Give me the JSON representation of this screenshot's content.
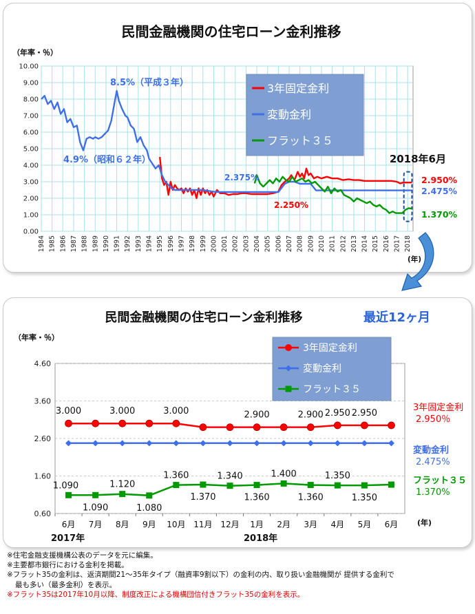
{
  "top": {
    "title": "民間金融機関の住宅ローン金利推移",
    "unit": "（年率・％）",
    "year_unit": "(年)",
    "highlight_label": "2018年6月",
    "chart_data": {
      "type": "line",
      "xlim": [
        1984,
        2018.5
      ],
      "ylim": [
        0,
        10
      ],
      "y_ticks": [
        "0.00",
        "1.00",
        "2.00",
        "3.00",
        "4.00",
        "5.00",
        "6.00",
        "7.00",
        "8.00",
        "9.00",
        "10.00"
      ],
      "x_ticks": [
        "1984",
        "1985",
        "1986",
        "1987",
        "1988",
        "1989",
        "1990",
        "1991",
        "1992",
        "1993",
        "1994",
        "1995",
        "1996",
        "1997",
        "1998",
        "1999",
        "2000",
        "2001",
        "2002",
        "2003",
        "2004",
        "2005",
        "2006",
        "2007",
        "2008",
        "2009",
        "2010",
        "2011",
        "2012",
        "2013",
        "2014",
        "2015",
        "2016",
        "2017",
        "2018"
      ],
      "legend": [
        "3年固定金利",
        "変動金利",
        "フラット３５"
      ],
      "legend_position": "top-right",
      "colors": {
        "fixed3": "#ff0000",
        "variable": "#3f6fe8",
        "flat35": "#009900"
      },
      "series": [
        {
          "name": "3年固定金利",
          "key": "fixed3",
          "x": [
            1995.0,
            1995.2,
            1995.4,
            1995.6,
            1995.8,
            1996.0,
            1996.2,
            1996.4,
            1996.6,
            1996.8,
            1997.0,
            1997.2,
            1997.4,
            1997.6,
            1997.8,
            1998.0,
            1998.2,
            1998.4,
            1998.6,
            1998.8,
            1999.0,
            1999.2,
            1999.4,
            1999.6,
            1999.8,
            2000.0,
            2000.3,
            2000.6,
            2001.0,
            2001.4,
            2001.8,
            2002.2,
            2002.6,
            2003.0,
            2003.5,
            2004.0,
            2004.5,
            2005.0,
            2005.5,
            2006.0,
            2006.3,
            2006.6,
            2007.0,
            2007.2,
            2007.5,
            2007.8,
            2008.0,
            2008.2,
            2008.4,
            2008.6,
            2008.8,
            2009.0,
            2009.3,
            2009.6,
            2010.0,
            2010.5,
            2011.0,
            2011.5,
            2012.0,
            2012.5,
            2013.0,
            2013.5,
            2014.0,
            2014.5,
            2015.0,
            2015.5,
            2016.0,
            2016.5,
            2017.0,
            2017.3,
            2017.6,
            2018.0,
            2018.4
          ],
          "y": [
            4.5,
            3.2,
            2.8,
            3.0,
            2.2,
            3.0,
            2.5,
            2.8,
            2.6,
            2.5,
            2.6,
            2.3,
            2.6,
            2.4,
            2.6,
            2.2,
            2.5,
            2.0,
            2.6,
            2.2,
            2.6,
            2.3,
            2.5,
            2.2,
            2.4,
            2.1,
            2.5,
            2.3,
            2.3,
            2.2,
            2.25,
            2.25,
            2.3,
            2.3,
            2.25,
            2.25,
            2.25,
            2.25,
            2.3,
            2.4,
            2.8,
            3.0,
            3.2,
            3.4,
            3.1,
            3.6,
            3.3,
            3.5,
            3.2,
            3.8,
            3.4,
            3.5,
            3.2,
            3.3,
            3.2,
            3.3,
            3.2,
            3.2,
            3.1,
            3.15,
            3.1,
            3.1,
            3.05,
            3.05,
            3.05,
            3.05,
            3.05,
            3.05,
            3.0,
            2.9,
            2.95,
            2.95,
            2.95
          ]
        },
        {
          "name": "変動金利",
          "key": "variable",
          "x": [
            1984.0,
            1984.3,
            1984.6,
            1984.9,
            1985.2,
            1985.5,
            1985.8,
            1986.1,
            1986.4,
            1986.7,
            1987.0,
            1987.3,
            1987.6,
            1987.9,
            1988.2,
            1988.5,
            1988.8,
            1989.0,
            1989.3,
            1989.6,
            1989.9,
            1990.2,
            1990.5,
            1990.8,
            1991.0,
            1991.2,
            1991.5,
            1991.8,
            1992.0,
            1992.3,
            1992.6,
            1992.9,
            1993.2,
            1993.5,
            1993.8,
            1994.0,
            1994.3,
            1994.6,
            1994.9,
            1995.2,
            1995.5,
            1995.8,
            1996.1,
            1996.4,
            1997.0,
            1998.0,
            1999.0,
            2000.0,
            2000.5,
            2001.0,
            2001.5,
            2002.0,
            2003.0,
            2004.0,
            2005.0,
            2006.0,
            2006.3,
            2006.6,
            2007.0,
            2007.5,
            2008.0,
            2008.5,
            2009.0,
            2009.5,
            2010.0,
            2011.0,
            2012.0,
            2013.0,
            2014.0,
            2015.0,
            2016.0,
            2017.0,
            2018.0,
            2018.4
          ],
          "y": [
            8.0,
            8.2,
            7.7,
            7.9,
            7.4,
            7.8,
            7.1,
            7.4,
            6.6,
            6.8,
            6.3,
            6.4,
            5.4,
            4.9,
            5.6,
            5.7,
            5.6,
            5.7,
            5.6,
            5.7,
            5.9,
            6.1,
            6.7,
            7.8,
            8.5,
            7.9,
            7.4,
            7.0,
            6.9,
            6.4,
            6.2,
            5.4,
            5.7,
            5.2,
            4.9,
            4.4,
            4.1,
            3.8,
            4.0,
            3.4,
            3.0,
            2.8,
            2.6,
            2.5,
            2.5,
            2.5,
            2.5,
            2.4,
            2.375,
            2.375,
            2.375,
            2.375,
            2.375,
            2.375,
            2.375,
            2.375,
            2.625,
            2.875,
            3.0,
            3.0,
            2.875,
            2.875,
            2.875,
            2.475,
            2.475,
            2.475,
            2.475,
            2.475,
            2.475,
            2.475,
            2.475,
            2.475,
            2.475,
            2.475
          ]
        },
        {
          "name": "フラット３５",
          "key": "flat35",
          "x": [
            2003.8,
            2004.0,
            2004.3,
            2004.6,
            2004.9,
            2005.2,
            2005.5,
            2005.8,
            2006.1,
            2006.4,
            2006.7,
            2007.0,
            2007.3,
            2007.6,
            2007.9,
            2008.2,
            2008.5,
            2008.8,
            2009.1,
            2009.4,
            2009.7,
            2010.0,
            2010.3,
            2010.6,
            2010.9,
            2011.2,
            2011.5,
            2011.8,
            2012.1,
            2012.4,
            2012.7,
            2013.0,
            2013.3,
            2013.6,
            2013.9,
            2014.2,
            2014.5,
            2014.8,
            2015.1,
            2015.4,
            2015.7,
            2016.0,
            2016.3,
            2016.6,
            2016.9,
            2017.2,
            2017.5,
            2017.8,
            2018.1,
            2018.4
          ],
          "y": [
            2.9,
            3.4,
            2.9,
            2.7,
            2.9,
            3.1,
            2.9,
            3.2,
            3.0,
            3.3,
            3.1,
            3.0,
            3.3,
            3.0,
            3.1,
            3.2,
            3.0,
            3.1,
            2.9,
            3.0,
            2.8,
            2.6,
            2.4,
            2.7,
            2.3,
            2.6,
            2.4,
            2.5,
            2.2,
            2.1,
            2.0,
            1.8,
            2.0,
            1.9,
            1.8,
            1.7,
            1.8,
            1.6,
            1.5,
            1.6,
            1.4,
            1.3,
            1.1,
            1.2,
            1.1,
            1.1,
            1.1,
            1.3,
            1.4,
            1.37
          ]
        }
      ],
      "annotations": [
        "8.5%（平成３年）",
        "4.9%（昭和６２年）",
        "2.375%",
        "2.250%"
      ],
      "end_values": [
        "2.950%",
        "2.475%",
        "1.370%"
      ]
    }
  },
  "bottom": {
    "title": "民間金融機関の住宅ローン金利推移",
    "subtitle": "最近12ヶ月",
    "unit": "（年率・％）",
    "year_unit": "(年)",
    "year_2017": "2017年",
    "year_2018": "2018年",
    "chart_data": {
      "type": "line",
      "categories": [
        "6月",
        "7月",
        "8月",
        "9月",
        "10月",
        "11月",
        "12月",
        "1月",
        "2月",
        "3月",
        "4月",
        "5月",
        "6月"
      ],
      "ylim": [
        0.6,
        4.6
      ],
      "y_ticks": [
        "0.60",
        "1.60",
        "2.60",
        "3.60",
        "4.60"
      ],
      "legend": [
        "3年固定金利",
        "変動金利",
        "フラット３５"
      ],
      "legend_position": "top-right",
      "colors": {
        "fixed3": "#ff0000",
        "variable": "#3f6fe8",
        "flat35": "#009900"
      },
      "series": [
        {
          "name": "3年固定金利",
          "key": "fixed3",
          "values": [
            3.0,
            3.0,
            3.0,
            3.0,
            3.0,
            2.9,
            2.9,
            2.9,
            2.9,
            2.9,
            2.95,
            2.95,
            2.95
          ]
        },
        {
          "name": "変動金利",
          "key": "variable",
          "values": [
            2.475,
            2.475,
            2.475,
            2.475,
            2.475,
            2.475,
            2.475,
            2.475,
            2.475,
            2.475,
            2.475,
            2.475,
            2.475
          ]
        },
        {
          "name": "フラット３５",
          "key": "flat35",
          "values": [
            1.09,
            1.09,
            1.12,
            1.08,
            1.36,
            1.37,
            1.34,
            1.36,
            1.4,
            1.36,
            1.35,
            1.35,
            1.37
          ]
        }
      ],
      "fixed_labels": [
        {
          "index": 0,
          "text": "3.000"
        },
        {
          "index": 2,
          "text": "3.000"
        },
        {
          "index": 4,
          "text": "3.000"
        },
        {
          "index": 7,
          "text": "2.900"
        },
        {
          "index": 9,
          "text": "2.900"
        },
        {
          "index": 10,
          "text": "2.950"
        },
        {
          "index": 11,
          "text": "2.950"
        }
      ],
      "flat_labels": [
        {
          "index": 0,
          "text": "1.090",
          "pos": "above"
        },
        {
          "index": 1,
          "text": "1.090",
          "pos": "below"
        },
        {
          "index": 2,
          "text": "1.120",
          "pos": "above"
        },
        {
          "index": 3,
          "text": "1.080",
          "pos": "below"
        },
        {
          "index": 4,
          "text": "1.360",
          "pos": "above"
        },
        {
          "index": 5,
          "text": "1.370",
          "pos": "below"
        },
        {
          "index": 6,
          "text": "1.340",
          "pos": "above"
        },
        {
          "index": 7,
          "text": "1.360",
          "pos": "below"
        },
        {
          "index": 8,
          "text": "1.400",
          "pos": "above"
        },
        {
          "index": 9,
          "text": "1.360",
          "pos": "below"
        },
        {
          "index": 10,
          "text": "1.350",
          "pos": "above"
        },
        {
          "index": 11,
          "text": "1.350",
          "pos": "below"
        }
      ],
      "right_labels": [
        {
          "name": "3年固定金利",
          "value": "2.950％"
        },
        {
          "name": "変動金利",
          "value": "2.475%"
        },
        {
          "name": "フラット３５",
          "value": "1.370%"
        }
      ]
    }
  },
  "notes": [
    "※住宅金融支援機構公表のデータを元に編集。",
    "※主要都市銀行における金利を掲載。",
    "※フラット35の金利は、返済期間21～35年タイプ（融資率9割以下）の金利の内、取り扱い金融機関が 提供する金利で",
    "最も多い（最多金利）を表示。",
    "※フラット35は2017年10月以降、制度改正による機構団信付きフラット35の金利を表示。"
  ]
}
